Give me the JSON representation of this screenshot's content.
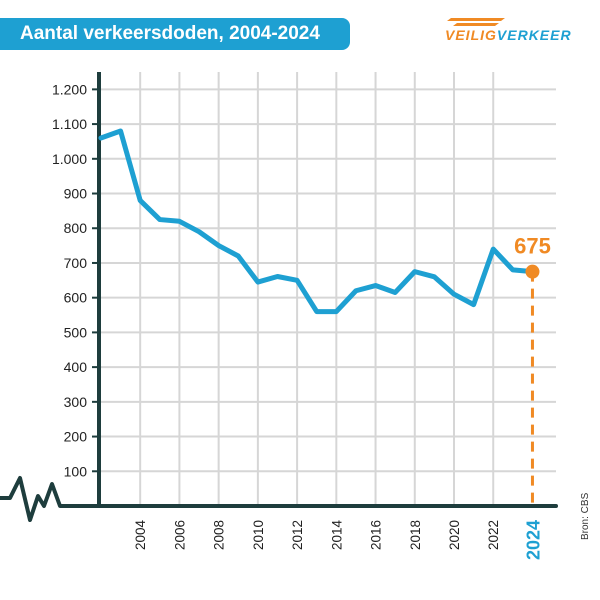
{
  "chart_data": {
    "type": "line",
    "title": "Aantal verkeersdoden, 2004-2024",
    "x": [
      2002,
      2003,
      2004,
      2005,
      2006,
      2007,
      2008,
      2009,
      2010,
      2011,
      2012,
      2013,
      2014,
      2015,
      2016,
      2017,
      2018,
      2019,
      2020,
      2021,
      2022,
      2023,
      2024
    ],
    "values": [
      1060,
      1080,
      880,
      825,
      820,
      790,
      750,
      720,
      645,
      661,
      650,
      560,
      560,
      620,
      635,
      615,
      675,
      660,
      610,
      580,
      740,
      680,
      675
    ],
    "ylim": [
      0,
      1250
    ],
    "yticks": [
      100,
      200,
      300,
      400,
      500,
      600,
      700,
      800,
      900,
      1000,
      1100,
      1200
    ],
    "ytick_labels": [
      "100",
      "200",
      "300",
      "400",
      "500",
      "600",
      "700",
      "800",
      "900",
      "1.000",
      "1.100",
      "1.200"
    ],
    "xticks": [
      2004,
      2006,
      2008,
      2010,
      2012,
      2014,
      2016,
      2018,
      2020,
      2022
    ],
    "xtick_labels": [
      "2004",
      "2006",
      "2008",
      "2010",
      "2012",
      "2014",
      "2016",
      "2018",
      "2020",
      "2022"
    ],
    "highlight_year_label": "2024",
    "highlight_value_label": "675",
    "grid": true,
    "source": "Bron: CBS",
    "colors": {
      "line": "#1ea0d2",
      "highlight": "#f08a24",
      "axis": "#1e3d3d",
      "grid": "#d6d6d6"
    }
  },
  "logo": {
    "part1": "VEILIG",
    "part2": "VERKEER"
  }
}
